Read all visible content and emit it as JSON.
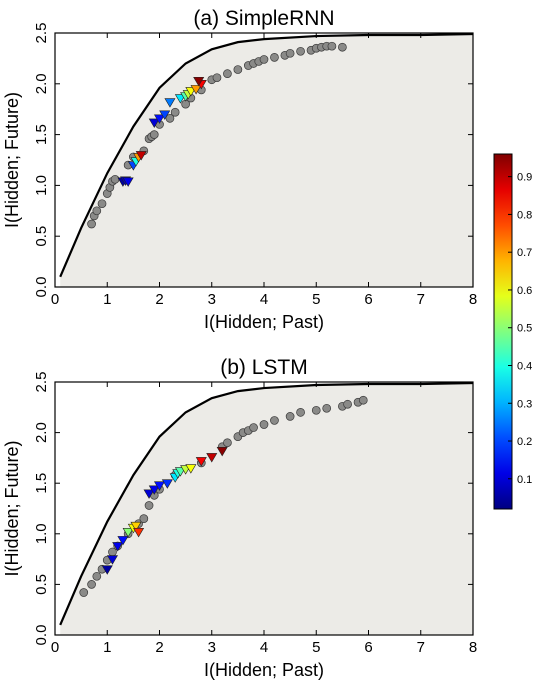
{
  "chart_data": [
    {
      "type": "scatter",
      "title": "(a) SimpleRNN",
      "xlabel": "I(Hidden; Past)",
      "ylabel": "I(Hidden; Future)",
      "xlim": [
        0,
        8
      ],
      "ylim": [
        0,
        2.5
      ],
      "xticks": [
        "0",
        "1",
        "2",
        "3",
        "4",
        "5",
        "6",
        "7",
        "8"
      ],
      "yticks": [
        "0.0",
        "0.5",
        "1.0",
        "1.5",
        "2.0",
        "2.5"
      ],
      "grid": false,
      "background": "#ecebe7",
      "bound_curve": {
        "x": [
          0.1,
          0.5,
          1.0,
          1.5,
          2.0,
          2.5,
          3.0,
          3.5,
          4.0,
          5.0,
          6.0,
          7.0,
          8.0
        ],
        "y": [
          0.1,
          0.58,
          1.12,
          1.58,
          1.96,
          2.2,
          2.34,
          2.41,
          2.44,
          2.47,
          2.48,
          2.48,
          2.49
        ]
      },
      "gray_points": {
        "x": [
          0.7,
          0.75,
          0.8,
          0.9,
          1.0,
          1.05,
          1.1,
          1.15,
          1.4,
          1.5,
          1.7,
          1.8,
          1.85,
          1.9,
          2.0,
          2.2,
          2.3,
          2.5,
          2.6,
          2.8,
          3.0,
          3.1,
          3.3,
          3.5,
          3.7,
          3.8,
          3.9,
          4.0,
          4.2,
          4.4,
          4.5,
          4.7,
          4.9,
          5.0,
          5.1,
          5.2,
          5.3,
          5.5
        ],
        "y": [
          0.62,
          0.7,
          0.75,
          0.82,
          0.92,
          0.98,
          1.04,
          1.06,
          1.2,
          1.28,
          1.34,
          1.46,
          1.48,
          1.5,
          1.6,
          1.66,
          1.72,
          1.8,
          1.86,
          1.94,
          2.04,
          2.06,
          2.1,
          2.14,
          2.18,
          2.2,
          2.22,
          2.24,
          2.26,
          2.28,
          2.3,
          2.32,
          2.33,
          2.35,
          2.36,
          2.37,
          2.37,
          2.36
        ]
      },
      "colored_points": {
        "x": [
          1.3,
          1.35,
          1.4,
          1.5,
          1.55,
          1.6,
          1.65,
          1.9,
          2.0,
          2.1,
          2.2,
          2.4,
          2.5,
          2.55,
          2.6,
          2.7,
          2.8,
          2.75
        ],
        "y": [
          1.04,
          1.05,
          1.04,
          1.2,
          1.24,
          1.28,
          1.3,
          1.62,
          1.66,
          1.7,
          1.82,
          1.86,
          1.88,
          1.9,
          1.93,
          1.95,
          2.0,
          2.03
        ],
        "value": [
          0.05,
          0.08,
          0.12,
          0.2,
          0.4,
          0.7,
          0.9,
          0.1,
          0.15,
          0.2,
          0.25,
          0.35,
          0.45,
          0.55,
          0.6,
          0.7,
          0.85,
          0.95
        ]
      }
    },
    {
      "type": "scatter",
      "title": "(b) LSTM",
      "xlabel": "I(Hidden; Past)",
      "ylabel": "I(Hidden; Future)",
      "xlim": [
        0,
        8
      ],
      "ylim": [
        0,
        2.5
      ],
      "xticks": [
        "0",
        "1",
        "2",
        "3",
        "4",
        "5",
        "6",
        "7",
        "8"
      ],
      "yticks": [
        "0.0",
        "0.5",
        "1.0",
        "1.5",
        "2.0",
        "2.5"
      ],
      "grid": false,
      "background": "#ecebe7",
      "bound_curve": {
        "x": [
          0.1,
          0.5,
          1.0,
          1.5,
          2.0,
          2.5,
          3.0,
          3.5,
          4.0,
          5.0,
          6.0,
          7.0,
          8.0
        ],
        "y": [
          0.1,
          0.58,
          1.12,
          1.58,
          1.96,
          2.2,
          2.34,
          2.41,
          2.44,
          2.47,
          2.48,
          2.48,
          2.49
        ]
      },
      "gray_points": {
        "x": [
          0.55,
          0.7,
          0.8,
          0.9,
          1.0,
          1.1,
          1.2,
          1.4,
          1.6,
          1.7,
          1.8,
          1.9,
          2.0,
          2.3,
          2.8,
          3.2,
          3.3,
          3.5,
          3.6,
          3.7,
          3.8,
          4.0,
          4.2,
          4.5,
          4.7,
          5.0,
          5.2,
          5.5,
          5.6,
          5.8,
          5.9
        ],
        "y": [
          0.42,
          0.5,
          0.58,
          0.65,
          0.74,
          0.82,
          0.88,
          1.0,
          1.1,
          1.15,
          1.28,
          1.38,
          1.44,
          1.58,
          1.7,
          1.86,
          1.9,
          1.96,
          2.0,
          2.02,
          2.05,
          2.08,
          2.12,
          2.16,
          2.2,
          2.22,
          2.24,
          2.26,
          2.28,
          2.3,
          2.32
        ]
      },
      "colored_points": {
        "x": [
          1.0,
          1.1,
          1.2,
          1.3,
          1.4,
          1.5,
          1.55,
          1.6,
          1.8,
          1.9,
          2.0,
          2.15,
          2.3,
          2.35,
          2.4,
          2.5,
          2.6,
          2.8,
          3.0,
          3.2
        ],
        "y": [
          0.65,
          0.75,
          0.88,
          0.94,
          1.02,
          1.06,
          1.08,
          1.02,
          1.4,
          1.44,
          1.48,
          1.5,
          1.56,
          1.6,
          1.62,
          1.64,
          1.65,
          1.72,
          1.76,
          1.82
        ],
        "value": [
          0.05,
          0.1,
          0.12,
          0.15,
          0.5,
          0.6,
          0.65,
          0.8,
          0.1,
          0.12,
          0.15,
          0.18,
          0.35,
          0.4,
          0.45,
          0.55,
          0.6,
          0.85,
          0.9,
          0.95
        ]
      }
    }
  ],
  "colorbar": {
    "ticks": [
      "0.1",
      "0.2",
      "0.3",
      "0.4",
      "0.5",
      "0.6",
      "0.7",
      "0.8",
      "0.9"
    ],
    "range": [
      0.02,
      0.96
    ]
  }
}
